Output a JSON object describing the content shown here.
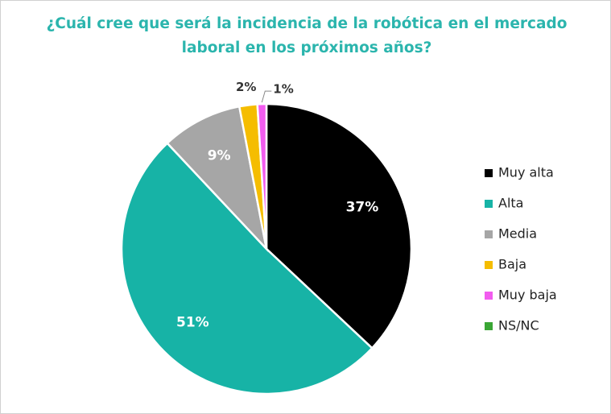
{
  "chart_data": {
    "type": "pie",
    "title": "¿Cuál cree que será la incidencia de la robótica en el mercado laboral en los próximos años?",
    "categories": [
      "Muy alta",
      "Alta",
      "Media",
      "Baja",
      "Muy baja",
      "NS/NC"
    ],
    "values": [
      37,
      51,
      9,
      2,
      1,
      0
    ],
    "value_labels": [
      "37%",
      "51%",
      "9%",
      "2%",
      "1%",
      null
    ],
    "colors": [
      "#000000",
      "#17b3a6",
      "#a6a6a6",
      "#f5bd00",
      "#f25cef",
      "#3aa635"
    ],
    "legend": "right"
  }
}
